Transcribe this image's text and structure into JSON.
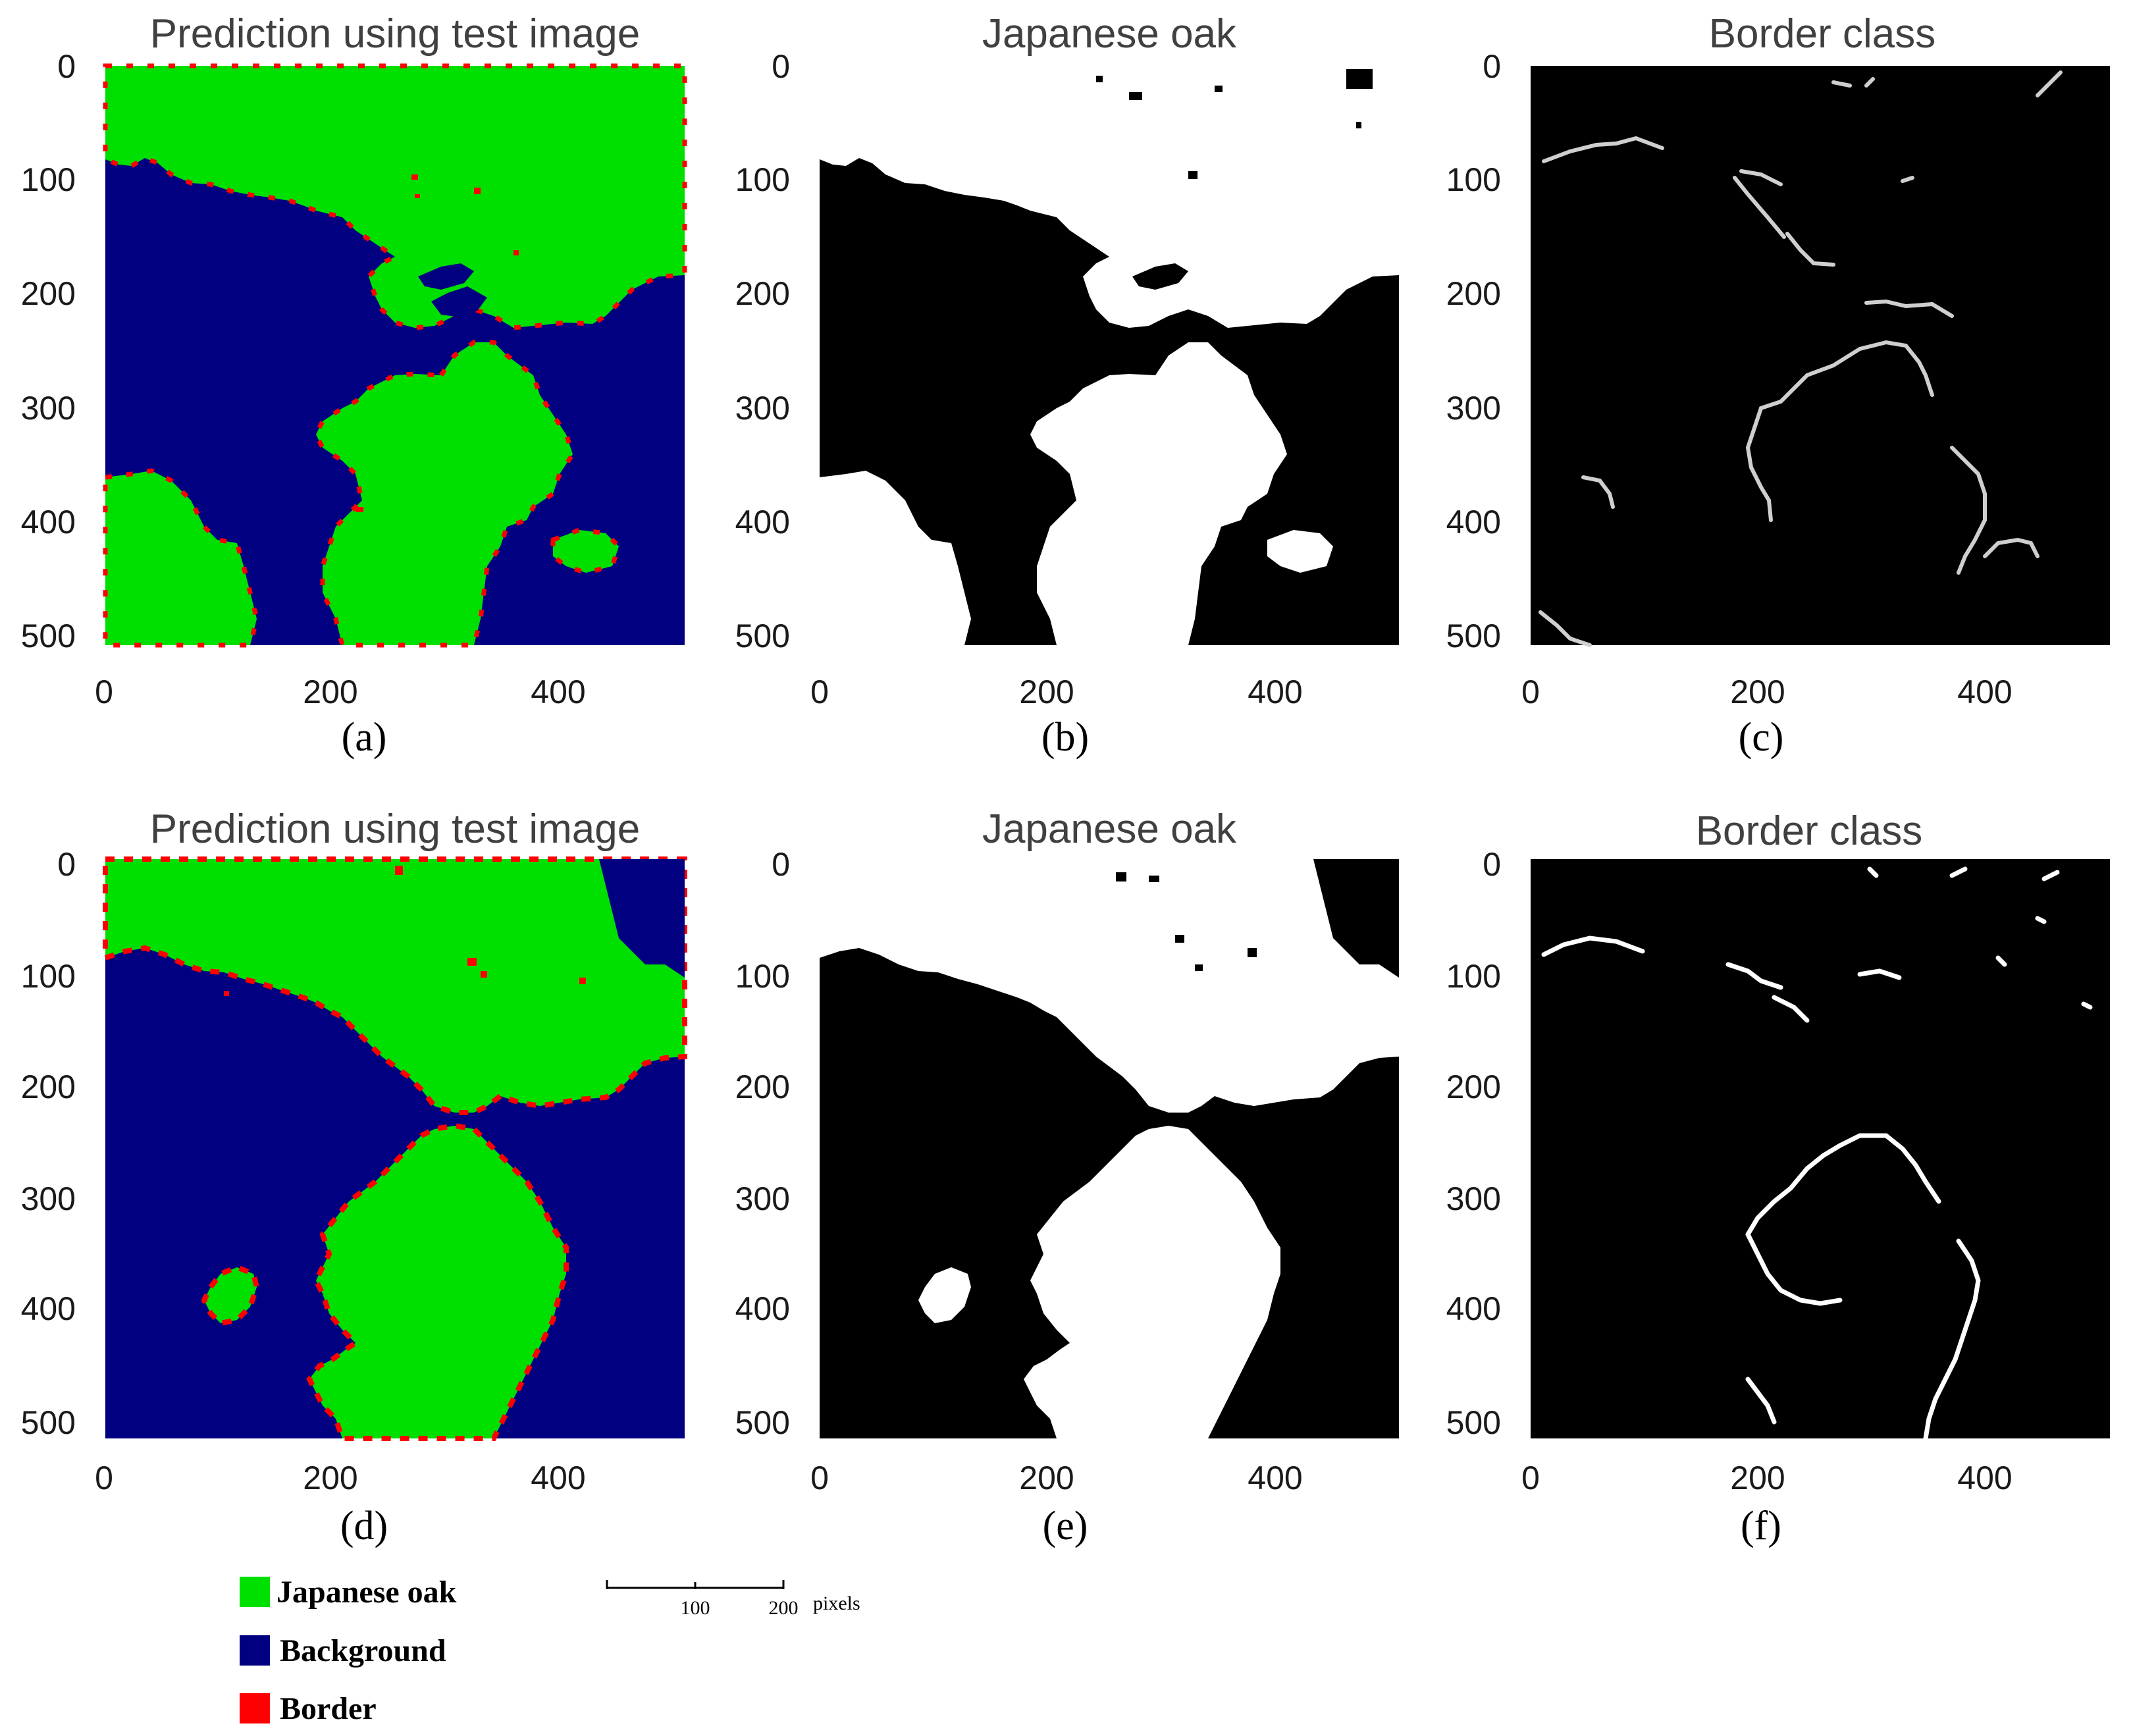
{
  "panels": [
    {
      "id": "a",
      "title": "Prediction using test image",
      "caption": "(a)",
      "kind": "prediction"
    },
    {
      "id": "b",
      "title": "Japanese oak",
      "caption": "(b)",
      "kind": "oak-mask"
    },
    {
      "id": "c",
      "title": "Border class",
      "caption": "(c)",
      "kind": "border-mask"
    },
    {
      "id": "d",
      "title": "Prediction using test image",
      "caption": "(d)",
      "kind": "prediction"
    },
    {
      "id": "e",
      "title": "Japanese oak",
      "caption": "(e)",
      "kind": "oak-mask"
    },
    {
      "id": "f",
      "title": "Border class",
      "caption": "(f)",
      "kind": "border-mask"
    }
  ],
  "axes": {
    "x_ticks": [
      "0",
      "200",
      "400"
    ],
    "y_ticks": [
      "0",
      "100",
      "200",
      "300",
      "400",
      "500"
    ]
  },
  "legend": [
    {
      "label": "Japanese oak",
      "color": "#00e000"
    },
    {
      "label": "Background",
      "color": "#000080"
    },
    {
      "label": "Border",
      "color": "#ff0000"
    }
  ],
  "scale_bar": {
    "ticks": [
      "100",
      "200"
    ],
    "unit": "pixels"
  },
  "colors": {
    "oak": "#00e000",
    "background": "#000080",
    "border": "#ff0000"
  }
}
